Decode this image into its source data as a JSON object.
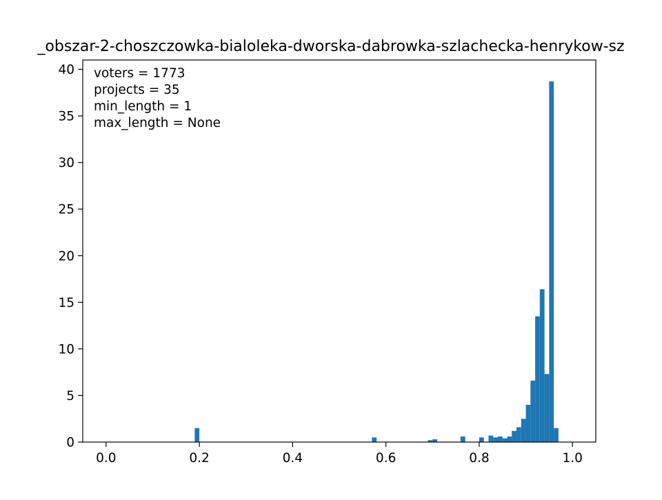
{
  "chart_data": {
    "type": "bar",
    "title": "_obszar-2-choszczowka-bialoleka-dworska-dabrowka-szlachecka-henrykow-sz",
    "xlabel": "",
    "ylabel": "",
    "xlim": [
      -0.05,
      1.05
    ],
    "ylim": [
      0,
      41
    ],
    "xticks": [
      "0.0",
      "0.2",
      "0.4",
      "0.6",
      "0.8",
      "1.0"
    ],
    "yticks": [
      "0",
      "5",
      "10",
      "15",
      "20",
      "25",
      "30",
      "35",
      "40"
    ],
    "annotations": [
      "voters = 1773",
      "projects = 35",
      "min_length = 1",
      "max_length = None"
    ],
    "bar_color": "#1f77b4",
    "bin_width": 0.01,
    "bins": [
      {
        "x": 0.19,
        "value": 1.5
      },
      {
        "x": 0.57,
        "value": 0.5
      },
      {
        "x": 0.69,
        "value": 0.2
      },
      {
        "x": 0.7,
        "value": 0.3
      },
      {
        "x": 0.76,
        "value": 0.6
      },
      {
        "x": 0.8,
        "value": 0.5
      },
      {
        "x": 0.82,
        "value": 0.7
      },
      {
        "x": 0.83,
        "value": 0.5
      },
      {
        "x": 0.84,
        "value": 0.6
      },
      {
        "x": 0.85,
        "value": 0.4
      },
      {
        "x": 0.86,
        "value": 0.6
      },
      {
        "x": 0.87,
        "value": 1.2
      },
      {
        "x": 0.88,
        "value": 1.6
      },
      {
        "x": 0.89,
        "value": 2.5
      },
      {
        "x": 0.9,
        "value": 4.0
      },
      {
        "x": 0.91,
        "value": 6.6
      },
      {
        "x": 0.92,
        "value": 13.5
      },
      {
        "x": 0.93,
        "value": 16.4
      },
      {
        "x": 0.94,
        "value": 7.3
      },
      {
        "x": 0.95,
        "value": 38.7
      },
      {
        "x": 0.96,
        "value": 1.5
      }
    ]
  }
}
